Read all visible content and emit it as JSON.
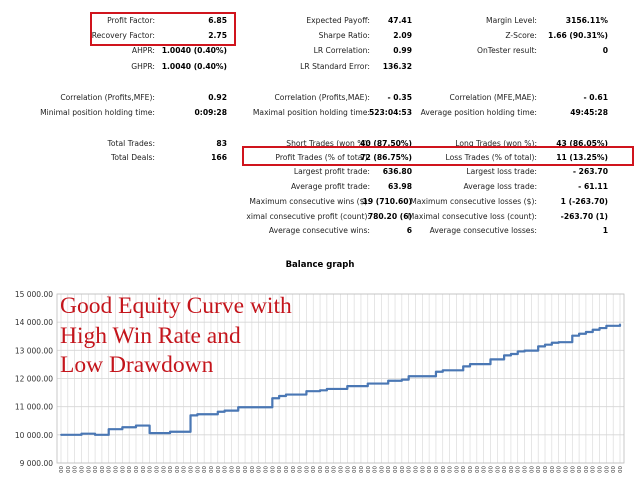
{
  "stats": [
    {
      "id": "profit-factor",
      "label": "Profit Factor:",
      "value": "6.85",
      "col": 0,
      "row": 0
    },
    {
      "id": "recovery-factor",
      "label": "Recovery Factor:",
      "value": "2.75",
      "col": 0,
      "row": 1
    },
    {
      "id": "ahpr",
      "label": "AHPR:",
      "value": "1.0040 (0.40%)",
      "col": 0,
      "row": 2
    },
    {
      "id": "ghpr",
      "label": "GHPR:",
      "value": "1.0040 (0.40%)",
      "col": 0,
      "row": 3
    },
    {
      "id": "expected-payoff",
      "label": "Expected Payoff:",
      "value": "47.41",
      "col": 1,
      "row": 0
    },
    {
      "id": "sharpe-ratio",
      "label": "Sharpe Ratio:",
      "value": "2.09",
      "col": 1,
      "row": 1
    },
    {
      "id": "lr-correlation",
      "label": "LR Correlation:",
      "value": "0.99",
      "col": 1,
      "row": 2
    },
    {
      "id": "lr-standard-error",
      "label": "LR Standard Error:",
      "value": "136.32",
      "col": 1,
      "row": 3
    },
    {
      "id": "margin-level",
      "label": "Margin Level:",
      "value": "3156.11%",
      "col": 2,
      "row": 0
    },
    {
      "id": "z-score",
      "label": "Z-Score:",
      "value": "1.66 (90.31%)",
      "col": 2,
      "row": 1
    },
    {
      "id": "ontester-result",
      "label": "OnTester result:",
      "value": "0",
      "col": 2,
      "row": 2
    },
    {
      "id": "correlation-profits-mfe",
      "label": "Correlation (Profits,MFE):",
      "value": "0.92",
      "col": 0,
      "row": 5
    },
    {
      "id": "min-position-holding-time",
      "label": "Minimal position holding time:",
      "value": "0:09:28",
      "col": 0,
      "row": 6
    },
    {
      "id": "correlation-profits-mae",
      "label": "Correlation (Profits,MAE):",
      "value": "- 0.35",
      "col": 1,
      "row": 5
    },
    {
      "id": "max-position-holding-time",
      "label": "Maximal position holding time:",
      "value": "523:04:53",
      "col": 1,
      "row": 6
    },
    {
      "id": "correlation-mfe-mae",
      "label": "Correlation (MFE,MAE):",
      "value": "- 0.61",
      "col": 2,
      "row": 5
    },
    {
      "id": "avg-position-holding-time",
      "label": "Average position holding time:",
      "value": "49:45:28",
      "col": 2,
      "row": 6
    },
    {
      "id": "total-trades",
      "label": "Total Trades:",
      "value": "83",
      "col": 0,
      "row": 8
    },
    {
      "id": "total-deals",
      "label": "Total Deals:",
      "value": "166",
      "col": 0,
      "row": 9
    },
    {
      "id": "short-trades",
      "label": "Short Trades (won %):",
      "value": "40 (87.50%)",
      "col": 1,
      "row": 8
    },
    {
      "id": "profit-trades",
      "label": "Profit Trades (% of total):",
      "value": "72 (86.75%)",
      "col": 1,
      "row": 9
    },
    {
      "id": "largest-profit-trade",
      "label": "Largest profit trade:",
      "value": "636.80",
      "col": 1,
      "row": 10
    },
    {
      "id": "average-profit-trade",
      "label": "Average profit trade:",
      "value": "63.98",
      "col": 1,
      "row": 11
    },
    {
      "id": "max-consecutive-wins",
      "label": "Maximum consecutive wins ($):",
      "value": "19 (710.60)",
      "col": 1,
      "row": 12
    },
    {
      "id": "max-consecutive-profit",
      "label": "ximal consecutive profit (count):",
      "value": "780.20 (6)",
      "col": 1,
      "row": 13
    },
    {
      "id": "avg-consecutive-wins",
      "label": "Average consecutive wins:",
      "value": "6",
      "col": 1,
      "row": 14
    },
    {
      "id": "long-trades",
      "label": "Long Trades (won %):",
      "value": "43 (86.05%)",
      "col": 2,
      "row": 8
    },
    {
      "id": "loss-trades",
      "label": "Loss Trades (% of total):",
      "value": "11 (13.25%)",
      "col": 2,
      "row": 9
    },
    {
      "id": "largest-loss-trade",
      "label": "Largest loss trade:",
      "value": "- 263.70",
      "col": 2,
      "row": 10
    },
    {
      "id": "average-loss-trade",
      "label": "Average loss trade:",
      "value": "- 61.11",
      "col": 2,
      "row": 11
    },
    {
      "id": "max-consecutive-losses",
      "label": "Maximum consecutive losses ($):",
      "value": "1 (-263.70)",
      "col": 2,
      "row": 12
    },
    {
      "id": "max-consecutive-loss",
      "label": "Maximal consecutive loss (count):",
      "value": "-263.70 (1)",
      "col": 2,
      "row": 13
    },
    {
      "id": "avg-consecutive-losses",
      "label": "Average consecutive losses:",
      "value": "1",
      "col": 2,
      "row": 14
    }
  ],
  "overlay_text": [
    "Good Equity Curve with",
    "High Win Rate and",
    "Low Drawdown"
  ],
  "colors": {
    "highlight": "#d0141d",
    "line": "#4a77b4",
    "grid": "#d6d6d6",
    "overlay": "#c4151c"
  },
  "chart_data": {
    "type": "line",
    "title": "Balance graph",
    "xlabel": "",
    "ylabel": "",
    "ylim": [
      9000,
      15000
    ],
    "yticks": [
      9000,
      10000,
      11000,
      12000,
      13000,
      14000,
      15000
    ],
    "ytick_labels": [
      "9 000.00",
      "10 000.00",
      "11 000.00",
      "12 000.00",
      "13 000.00",
      "14 000.00",
      "15 000.00"
    ],
    "x_tick_count": 83,
    "x_tick_label": "00",
    "grid": true,
    "series": [
      {
        "x": [
          0,
          3,
          5,
          7,
          9,
          11,
          13,
          16,
          19,
          20,
          23,
          24,
          26,
          31,
          32,
          33,
          36,
          38,
          39,
          42,
          45,
          48,
          50,
          51,
          55,
          56,
          59,
          60,
          63,
          65,
          66,
          67,
          68,
          70,
          71,
          72,
          73,
          75,
          76,
          77,
          78,
          79,
          80,
          82
        ],
        "values": [
          10000,
          10040,
          10000,
          10200,
          10270,
          10330,
          10060,
          10110,
          10690,
          10730,
          10820,
          10860,
          10980,
          11300,
          11380,
          11430,
          11550,
          11580,
          11630,
          11730,
          11820,
          11920,
          11960,
          12080,
          12240,
          12290,
          12430,
          12510,
          12680,
          12820,
          12870,
          12960,
          12990,
          13140,
          13200,
          13270,
          13290,
          13520,
          13590,
          13650,
          13730,
          13790,
          13870,
          13920
        ]
      }
    ]
  }
}
